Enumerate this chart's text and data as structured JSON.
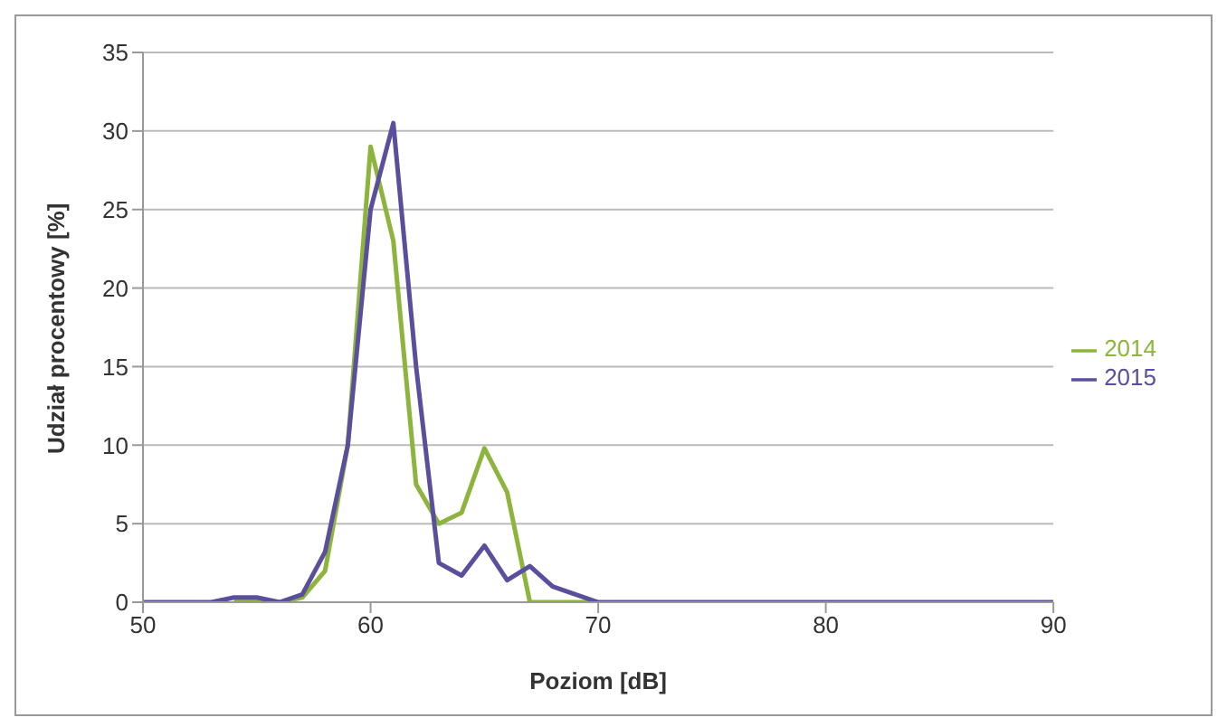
{
  "chart_data": {
    "type": "line",
    "xlabel": "Poziom [dB]",
    "ylabel": "Udział procentowy [%]",
    "x": [
      50,
      51,
      52,
      53,
      54,
      55,
      56,
      57,
      58,
      59,
      60,
      61,
      62,
      63,
      64,
      65,
      66,
      67,
      68,
      69,
      70,
      71,
      72,
      73,
      74,
      75,
      76,
      77,
      78,
      79,
      80,
      81,
      82,
      83,
      84,
      85,
      86,
      87,
      88,
      89,
      90
    ],
    "series": [
      {
        "name": "2014",
        "color": "#8db43c",
        "values": [
          null,
          null,
          null,
          null,
          0.2,
          0.2,
          0,
          0.3,
          2,
          10,
          29,
          23,
          7.5,
          5,
          5.7,
          9.8,
          7,
          0,
          0,
          0,
          0,
          null,
          null,
          null,
          null,
          null,
          null,
          null,
          null,
          null,
          null,
          null,
          null,
          null,
          null,
          null,
          null,
          null,
          null,
          null,
          null
        ]
      },
      {
        "name": "2015",
        "color": "#5a4f9c",
        "values": [
          0,
          0,
          0,
          0,
          0.3,
          0.3,
          0,
          0.5,
          3.2,
          10,
          25,
          30.5,
          15,
          2.5,
          1.7,
          3.6,
          1.4,
          2.3,
          1,
          0.5,
          0,
          0,
          0,
          0,
          0,
          0,
          0,
          0,
          0,
          0,
          0,
          0,
          0,
          0,
          0,
          0,
          0,
          0,
          0,
          0,
          0
        ]
      }
    ],
    "xlim": [
      50,
      90
    ],
    "xticks": [
      50,
      60,
      70,
      80,
      90
    ],
    "ylim": [
      0,
      35
    ],
    "yticks": [
      0,
      5,
      10,
      15,
      20,
      25,
      30,
      35
    ],
    "grid": "y",
    "legend": "right",
    "marker": "none",
    "line_style": "solid"
  }
}
